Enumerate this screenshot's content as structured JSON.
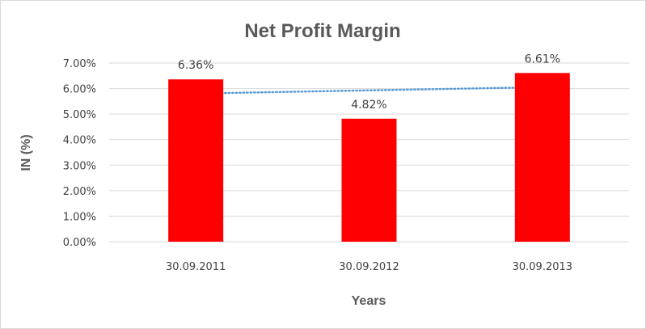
{
  "chart_data": {
    "type": "bar",
    "title": "Net Profit Margin",
    "xlabel": "Years",
    "ylabel": "IN (%)",
    "categories": [
      "30.09.2011",
      "30.09.2012",
      "30.09.2013"
    ],
    "values": [
      6.36,
      4.82,
      6.61
    ],
    "data_labels": [
      "6.36%",
      "4.82%",
      "6.61%"
    ],
    "y_ticks": [
      0,
      1,
      2,
      3,
      4,
      5,
      6,
      7
    ],
    "y_tick_labels": [
      "0.00%",
      "1.00%",
      "2.00%",
      "3.00%",
      "4.00%",
      "5.00%",
      "6.00%",
      "7.00%"
    ],
    "ylim": [
      0,
      7
    ],
    "bar_color": "#ff0000",
    "grid": true,
    "gridline_color": "#d9d9d9",
    "trendline": {
      "type": "linear",
      "style": "dotted",
      "color": "#5b9bd5"
    }
  }
}
